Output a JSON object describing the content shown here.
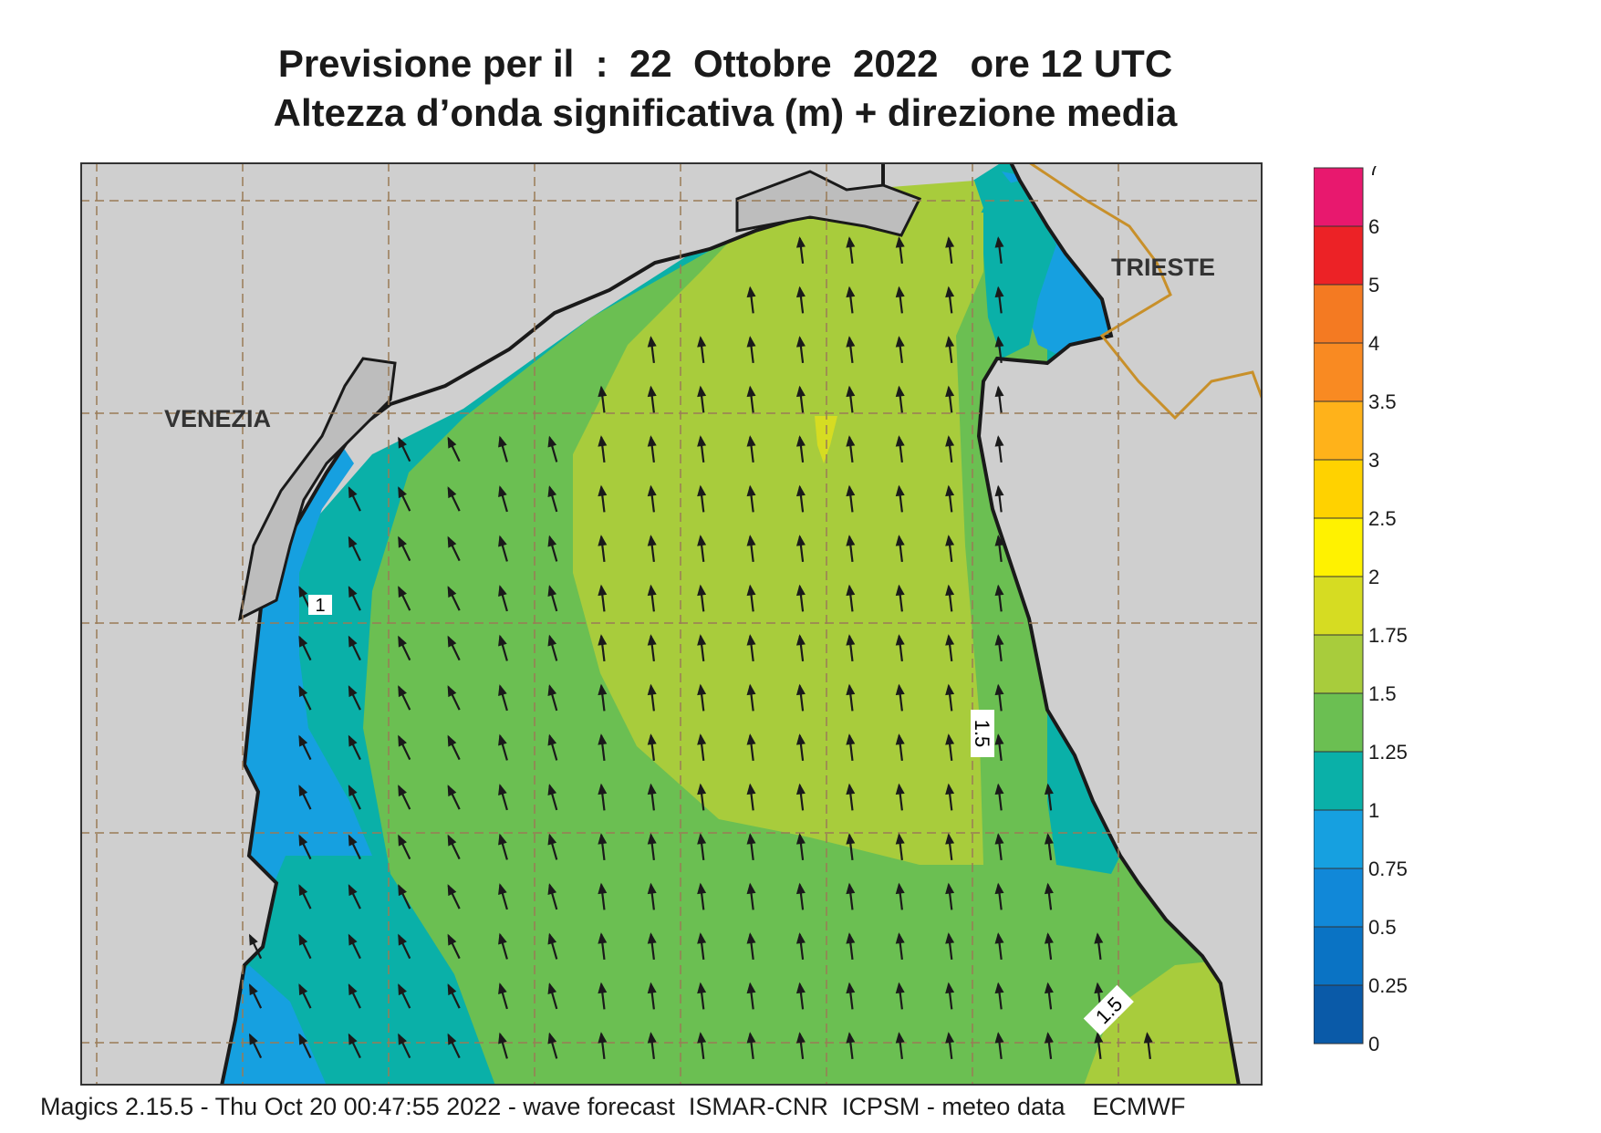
{
  "header": {
    "title_line1": "Previsione per il  :  22  Ottobre  2022   ore 12 UTC",
    "title_line2": "Altezza d’onda significativa (m) + direzione media"
  },
  "map": {
    "place_labels": [
      "VENEZIA",
      "TRIESTE"
    ],
    "contour_labels": [
      "1",
      "1.5",
      "1.5"
    ],
    "colors": {
      "land": "#cfcfcf",
      "coast": "#1a1a1a",
      "graticule": "#9a7b56",
      "border": "#c8902a",
      "arrow": "#1a1a1a"
    },
    "arrow_direction": "north / north-northwest"
  },
  "legend": {
    "labels": [
      "7",
      "6",
      "5",
      "4",
      "3.5",
      "3",
      "2.5",
      "2",
      "1.75",
      "1.5",
      "1.25",
      "1",
      "0.75",
      "0.5",
      "0.25",
      "0"
    ],
    "colors": [
      "#0a5aa8",
      "#0a73c4",
      "#1188d8",
      "#16a0e0",
      "#0ab0a8",
      "#6bbf52",
      "#a8cc3c",
      "#d6dc22",
      "#fff200",
      "#ffd200",
      "#ffb21a",
      "#f98a22",
      "#f47a22",
      "#ec2226",
      "#e8186e"
    ]
  },
  "footer": {
    "text": "Magics 2.15.5 - Thu Oct 20 00:47:55 2022 - wave forecast  ISMAR-CNR  ICPSM - meteo data    ECMWF"
  }
}
